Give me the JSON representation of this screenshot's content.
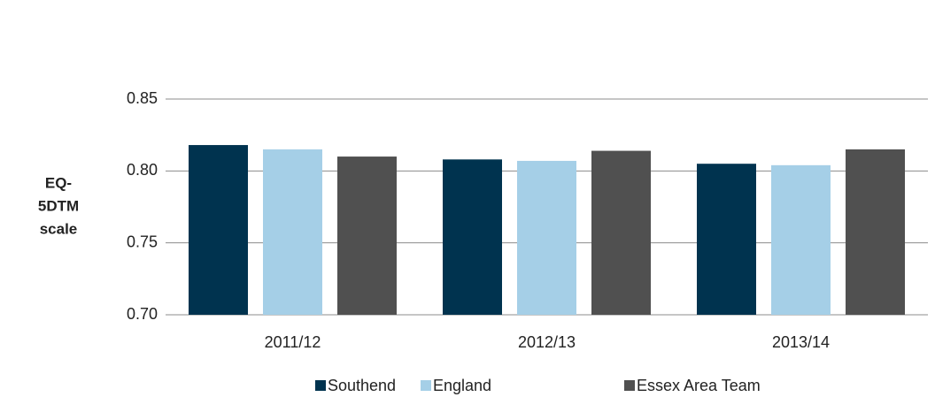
{
  "chart_data": {
    "type": "bar",
    "y_label_lines": [
      "EQ-",
      "5DTM",
      "scale"
    ],
    "categories": [
      "2011/12",
      "2012/13",
      "2013/14"
    ],
    "series": [
      {
        "name": "Southend",
        "color": "#00334f",
        "values": [
          0.818,
          0.808,
          0.805
        ]
      },
      {
        "name": "England",
        "color": "#a5cfe7",
        "values": [
          0.815,
          0.807,
          0.804
        ]
      },
      {
        "name": "Essex Area Team",
        "color": "#505050",
        "values": [
          0.81,
          0.814,
          0.815
        ]
      }
    ],
    "ylim": [
      0.7,
      0.85
    ],
    "yticks": [
      {
        "value": 0.7,
        "label": "0.70"
      },
      0.75,
      {
        "value": 0.8,
        "label": "0.80"
      },
      0.85
    ],
    "grid": true,
    "legend": "bottom"
  }
}
